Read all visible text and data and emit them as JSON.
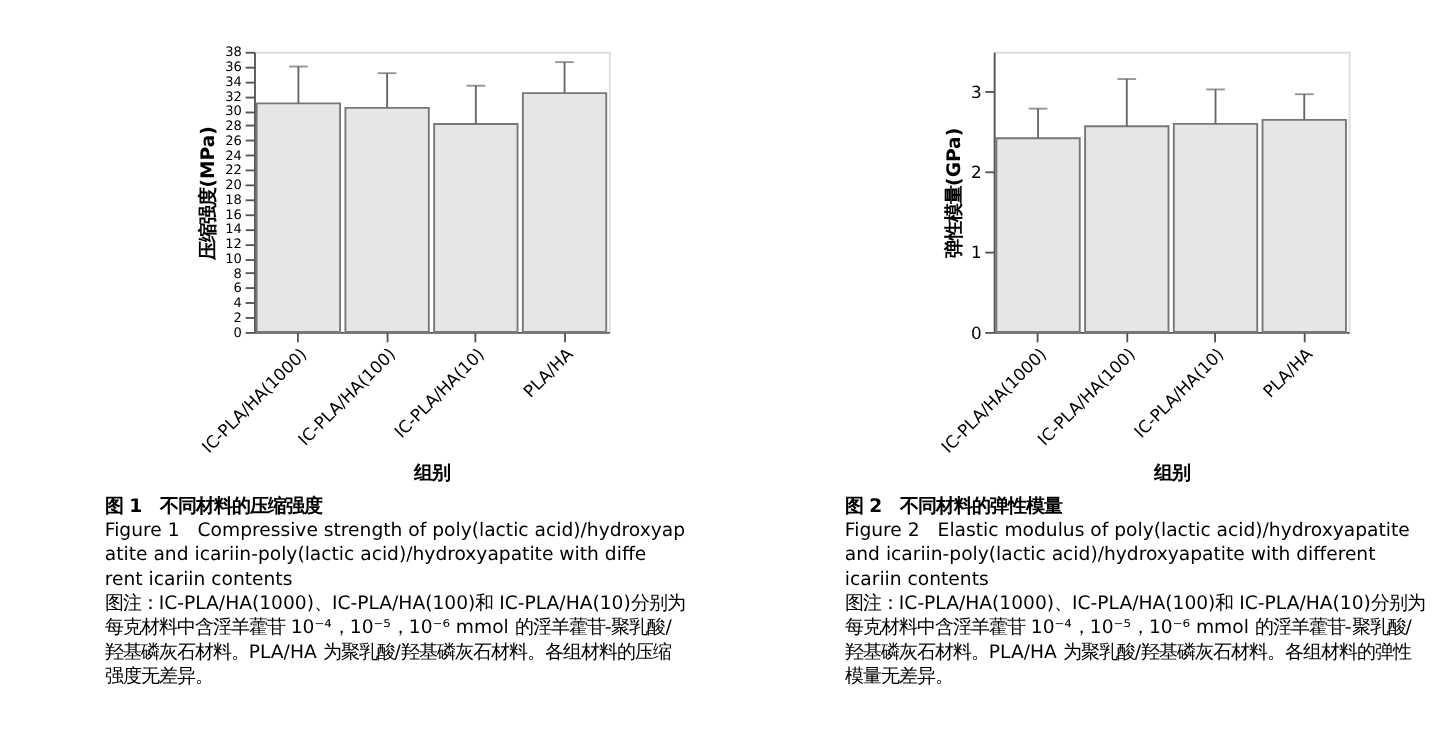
{
  "chart_data": [
    {
      "type": "bar",
      "title": "图 1　不同材料的压缩强度",
      "subtitle": "Figure 1　Compressive strength of poly(lactic acid)/hydroxyapatite and icariin-poly(lactic acid)/hydroxyapatite with different icariin contents",
      "xlabel": "组别",
      "ylabel": "压缩强度(MPa)",
      "annotations": [
        "图注：IC-PLA/HA(1000)、IC-PLA/HA(100)和 IC-PLA/HA(10)分别为每克材料中含淫羊藿苷 10⁻⁴，10⁻⁵，10⁻⁶ mmol 的淫羊藿苷-聚乳酸/羟基磷灰石材料。PLA/HA 为聚乳酸/羟基磷灰石材料。各组材料的压缩强度无差异。"
      ],
      "categories": [
        "IC-PLA/HA(1000)",
        "IC-PLA/HA(100)",
        "IC-PLA/HA(10)",
        "PLA/HA"
      ],
      "values": [
        31.0,
        30.4,
        28.2,
        32.4
      ],
      "color": "#e6e6e6",
      "errors": [
        [
          31.0,
          36.0
        ],
        [
          30.4,
          35.1
        ],
        [
          28.2,
          33.4
        ],
        [
          32.4,
          36.6
        ]
      ],
      "ylim": [
        0,
        38
      ],
      "yticks": [
        0,
        2,
        4,
        6,
        8,
        10,
        12,
        14,
        16,
        18,
        20,
        22,
        24,
        26,
        28,
        30,
        32,
        34,
        36,
        38
      ],
      "grid": false
    },
    {
      "type": "bar",
      "title": "图 2　不同材料的弹性模量",
      "subtitle": "Figure 2　Elastic modulus of poly(lactic acid)/hydroxyapatite and icariin-poly(lactic acid)/hydroxyapatite with different icariin contents",
      "xlabel": "组别",
      "ylabel": "弹性模量(GPa)",
      "annotations": [
        "图注：IC-PLA/HA(1000)、IC-PLA/HA(100)和 IC-PLA/HA(10)分别为每克材料中含淫羊藿苷 10⁻⁴，10⁻⁵，10⁻⁶ mmol 的淫羊藿苷-聚乳酸/羟基磷灰石材料。PLA/HA 为聚乳酸/羟基磷灰石材料。各组材料的弹性模量无差异。"
      ],
      "categories": [
        "IC-PLA/HA(1000)",
        "IC-PLA/HA(100)",
        "IC-PLA/HA(10)",
        "PLA/HA"
      ],
      "values": [
        2.42,
        2.57,
        2.6,
        2.65
      ],
      "color": "#e6e6e6",
      "errors": [
        [
          2.42,
          2.79
        ],
        [
          2.57,
          3.16
        ],
        [
          2.6,
          3.03
        ],
        [
          2.65,
          2.97
        ]
      ],
      "ylim": [
        0,
        3.5
      ],
      "yticks": [
        0,
        1,
        2,
        3
      ],
      "grid": false
    }
  ]
}
